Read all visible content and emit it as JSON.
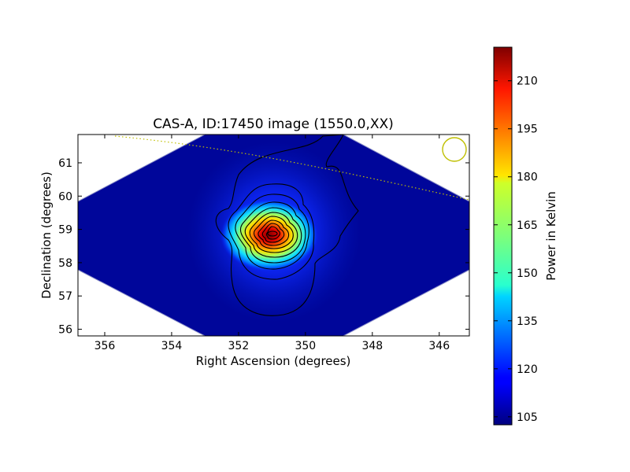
{
  "chart_data": {
    "type": "heatmap",
    "title": "CAS-A, ID:17450 image (1550.0,XX)",
    "xlabel": "Right Ascension (degrees)",
    "ylabel": "Declination (degrees)",
    "xlim": [
      356.8,
      345.1
    ],
    "ylim": [
      55.8,
      61.85
    ],
    "xticks": [
      356,
      354,
      352,
      350,
      348,
      346
    ],
    "yticks": [
      56,
      57,
      58,
      59,
      60,
      61
    ],
    "colorbar": {
      "label": "Power in Kelvin",
      "range": [
        102.5,
        220.5
      ],
      "ticks": [
        105,
        120,
        135,
        150,
        165,
        180,
        195,
        210
      ],
      "colormap": "jet"
    },
    "peak": {
      "ra": 350.9,
      "dec": 58.82,
      "value": 220
    },
    "background_value": 103,
    "grid": false,
    "colors": {
      "coverage_outside": "#ffffff",
      "map_low": "#000080",
      "map_high": "#800000",
      "contours": "#000000",
      "beam_circle": "#bfbf00",
      "dotted_line": "#bfbf00"
    }
  }
}
